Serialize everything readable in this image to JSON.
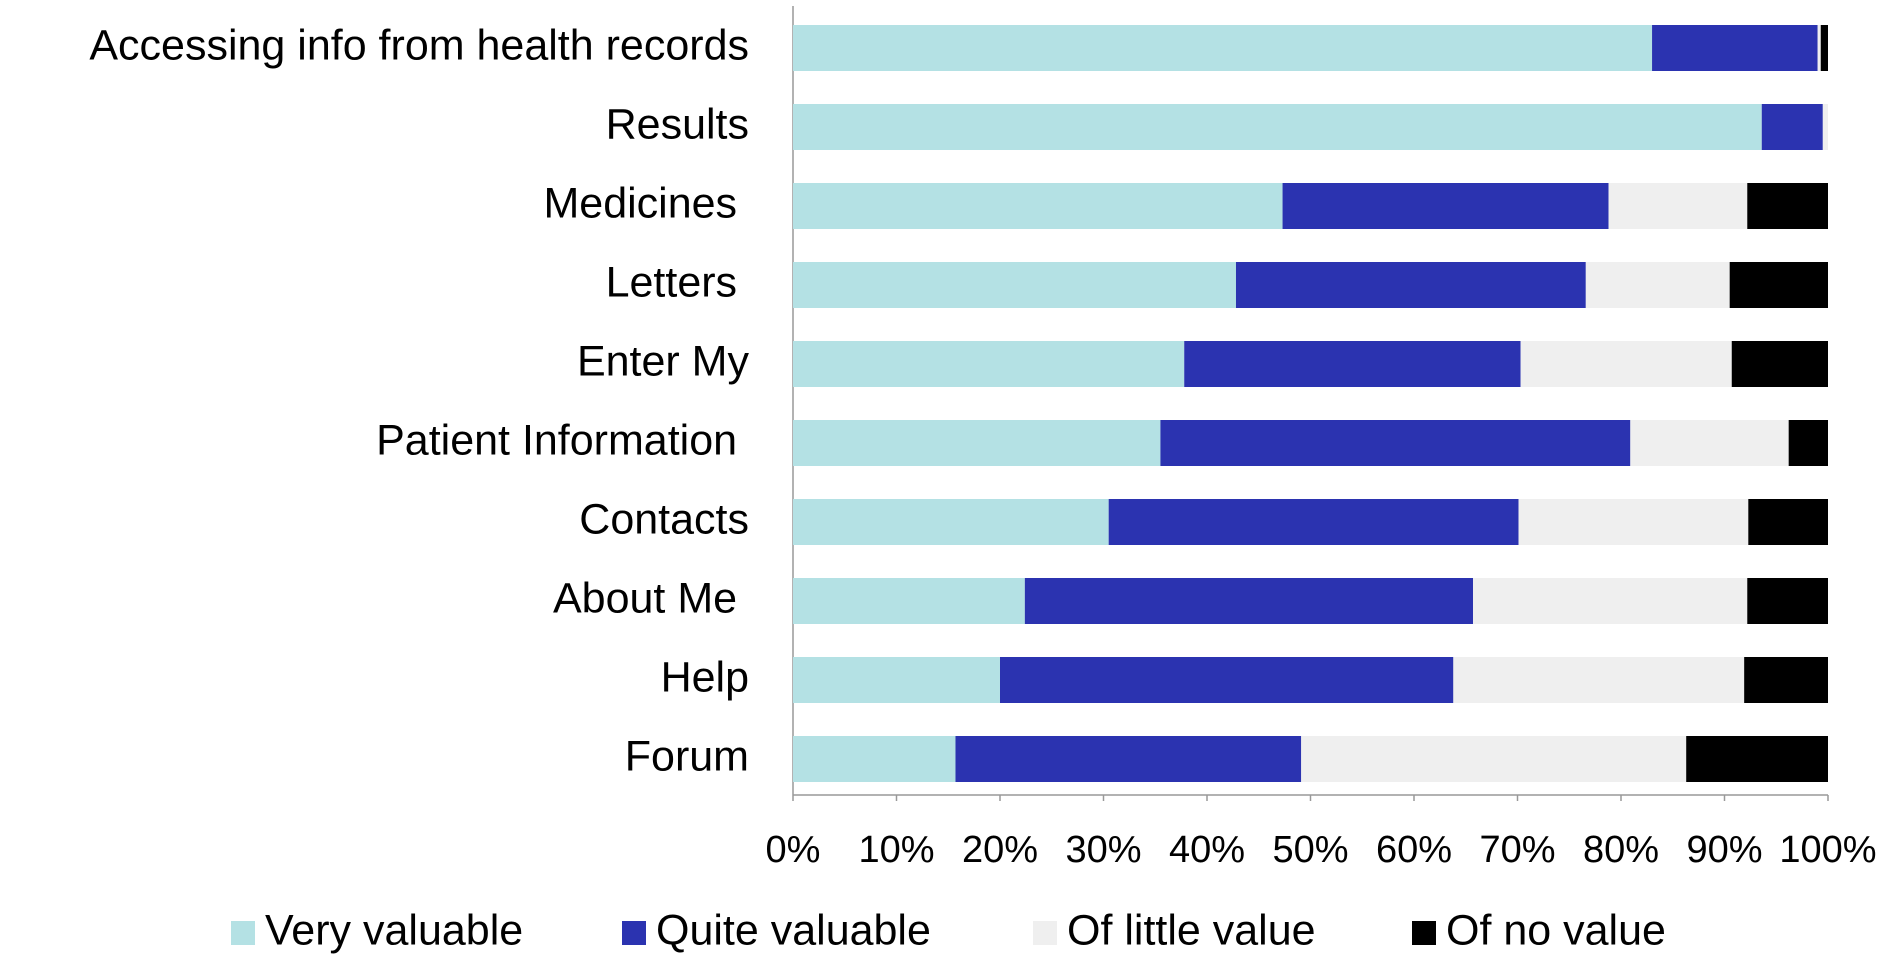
{
  "chart_data": {
    "type": "stacked_bar_horizontal",
    "categories": [
      "Accessing info from health records",
      "Results",
      "Medicines ",
      "Letters ",
      "Enter My",
      "Patient Information ",
      "Contacts",
      "About Me ",
      "Help",
      "Forum"
    ],
    "series": [
      {
        "name": "Very valuable",
        "color": "#b4e1e4",
        "values": [
          83.0,
          93.6,
          47.3,
          42.8,
          37.8,
          35.5,
          30.5,
          22.4,
          20.0,
          15.7
        ]
      },
      {
        "name": "Quite valuable",
        "color": "#2b33b0",
        "values": [
          16.0,
          5.9,
          31.5,
          33.8,
          32.5,
          45.4,
          39.6,
          43.3,
          43.8,
          33.4
        ]
      },
      {
        "name": "Of little value",
        "color": "#efefef",
        "values": [
          0.3,
          0.5,
          13.4,
          13.9,
          20.4,
          15.3,
          22.2,
          26.5,
          28.1,
          37.2
        ]
      },
      {
        "name": "Of no value",
        "color": "#000000",
        "values": [
          0.7,
          0,
          7.8,
          9.5,
          9.3,
          3.8,
          7.7,
          7.8,
          8.1,
          13.7
        ]
      }
    ],
    "xlim": [
      0,
      100
    ],
    "xticks": [
      {
        "value": 0,
        "label": "0%"
      },
      {
        "value": 10,
        "label": "10%"
      },
      {
        "value": 20,
        "label": "20%"
      },
      {
        "value": 30,
        "label": "30%"
      },
      {
        "value": 40,
        "label": "40%"
      },
      {
        "value": 50,
        "label": "50%"
      },
      {
        "value": 60,
        "label": "60%"
      },
      {
        "value": 70,
        "label": "70%"
      },
      {
        "value": 80,
        "label": "80%"
      },
      {
        "value": 90,
        "label": "90%"
      },
      {
        "value": 100,
        "label": "100%"
      }
    ],
    "legend": "bottom"
  }
}
